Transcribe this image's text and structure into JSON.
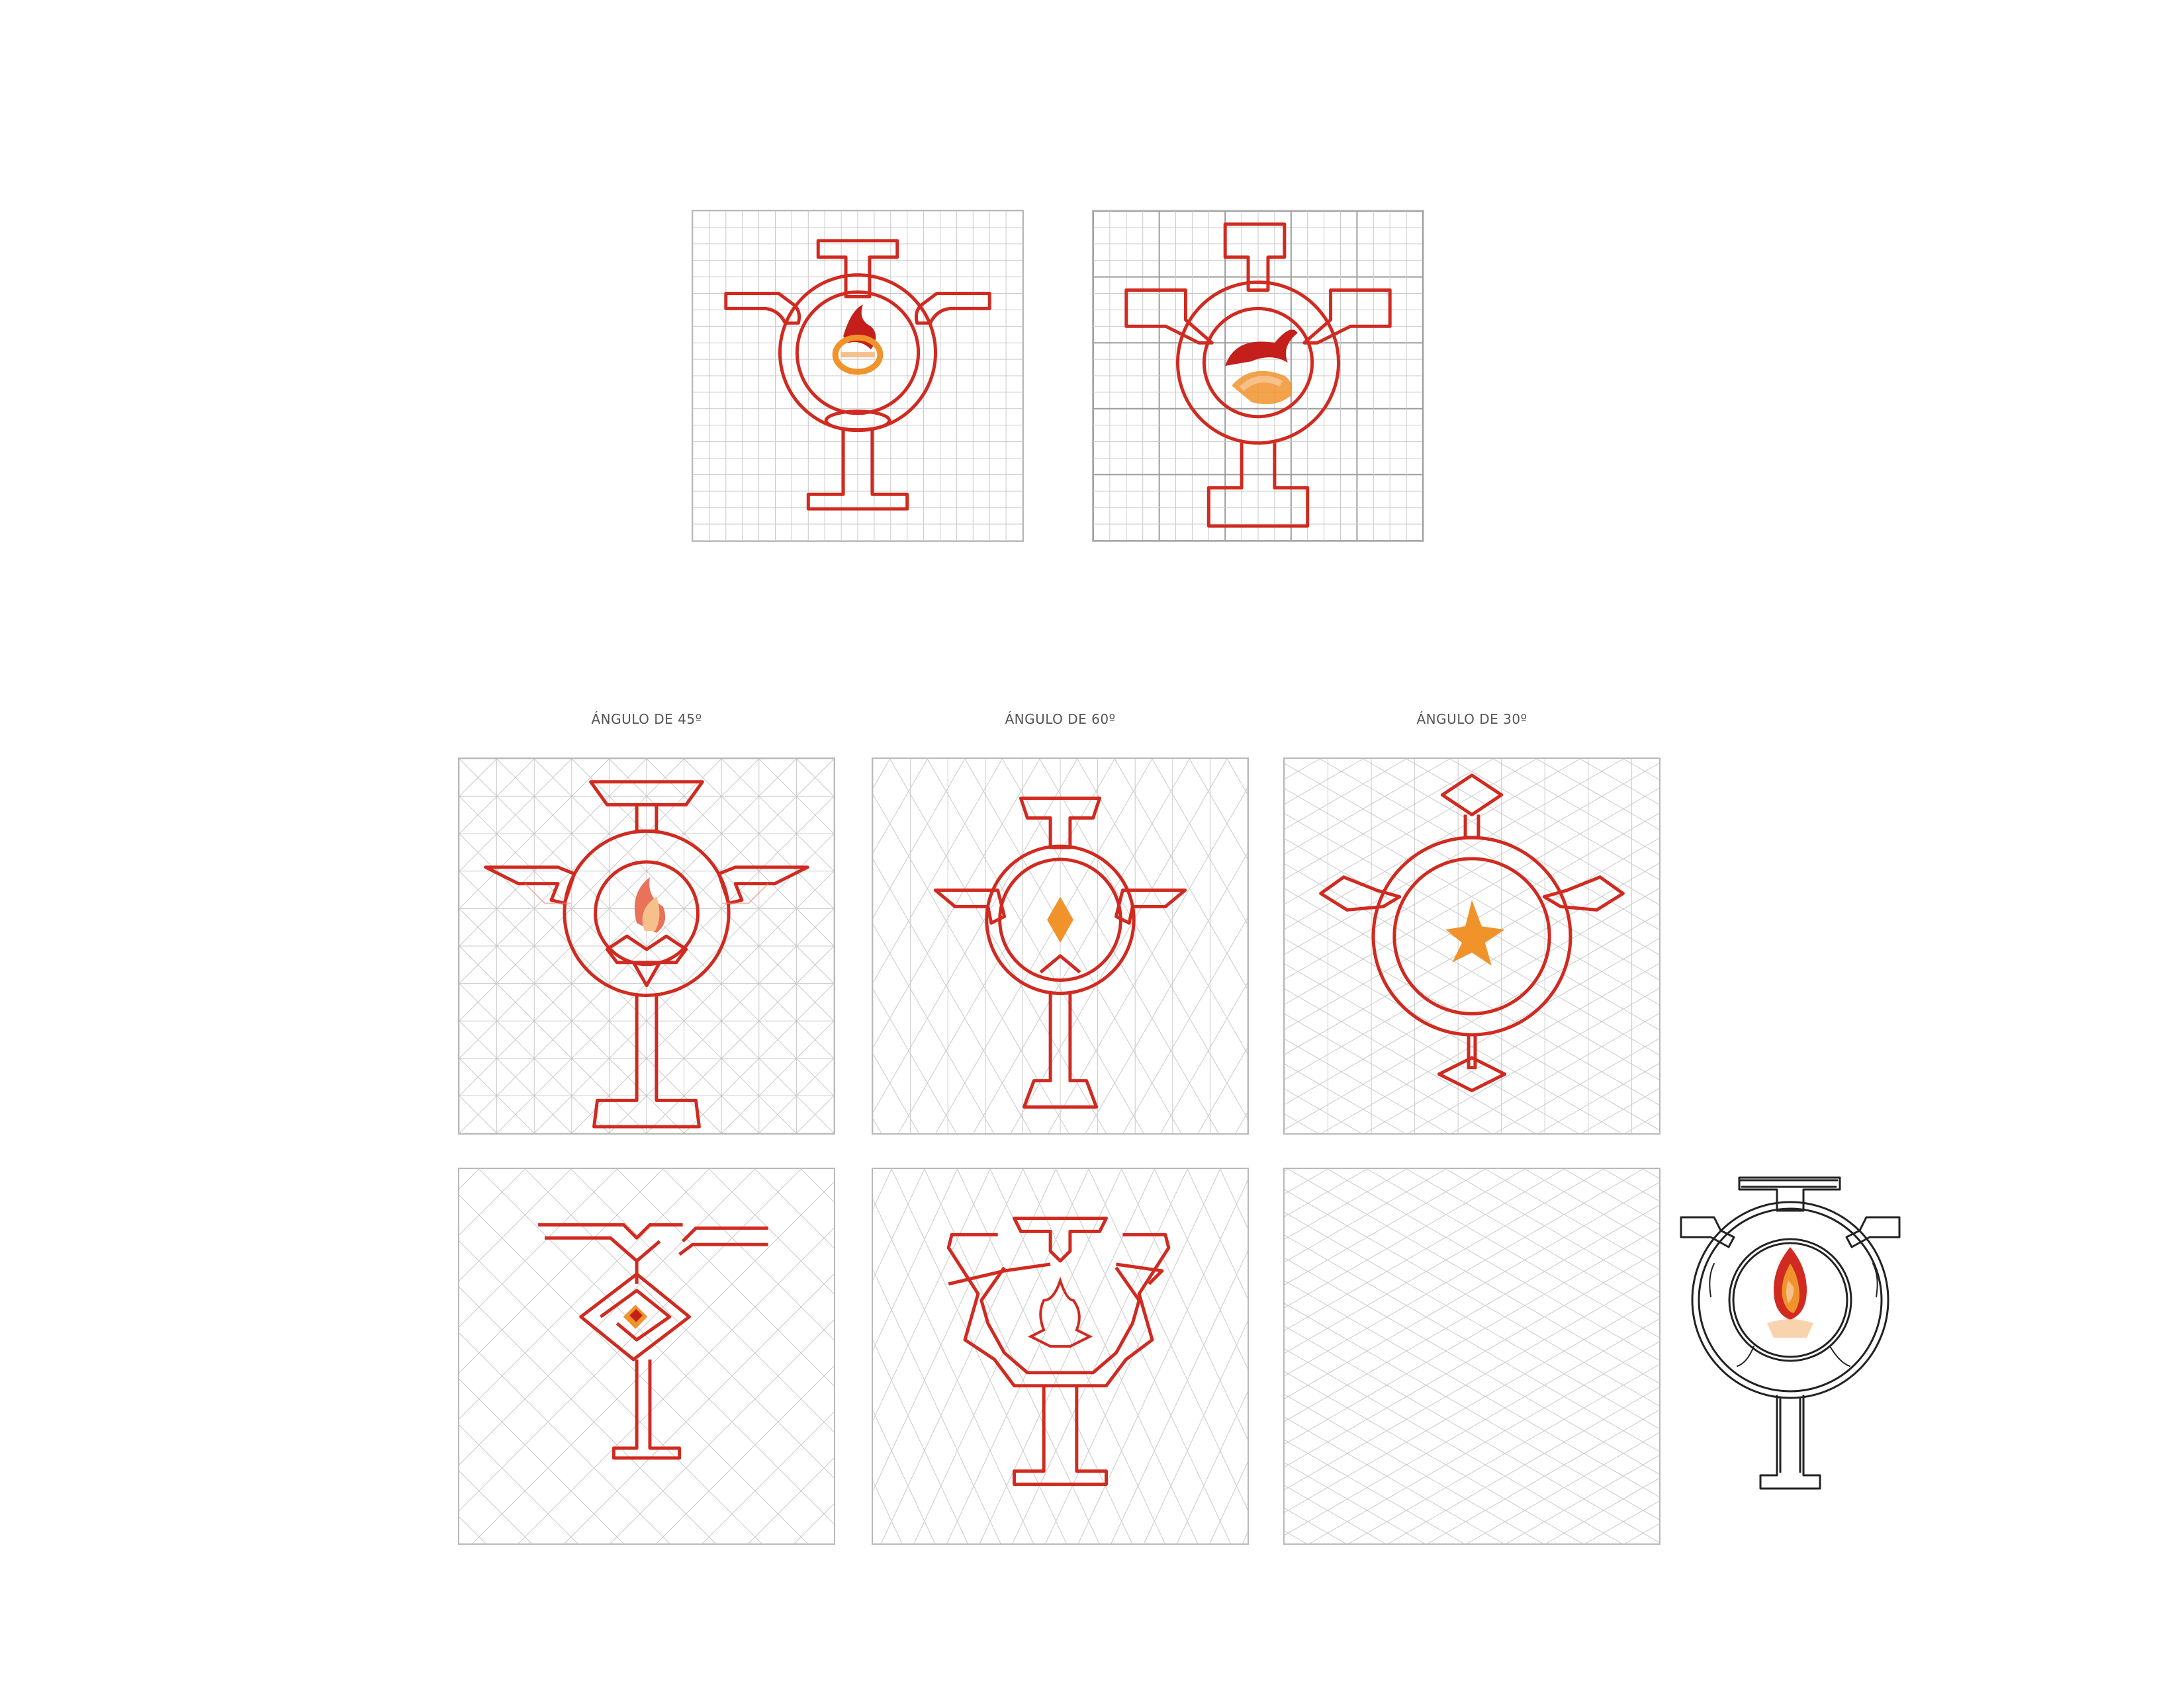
{
  "colors": {
    "grid": "#c9c9c9",
    "grid_major": "#9c9c9c",
    "outline": "#d12a20",
    "flame_dark": "#c41f1a",
    "flame_orange": "#f0932b",
    "flame_light": "#f6c08a",
    "sketch_ink": "#222222"
  },
  "sections": {
    "square_grids": [
      {
        "id": "square-fine",
        "icon": "emblem-flame-icon"
      },
      {
        "id": "square-major",
        "icon": "emblem-flame-icon"
      }
    ],
    "angle_grids": [
      {
        "id": "angle-45",
        "label": "ÁNGULO DE 45º",
        "icon": "winged-emblem-icon"
      },
      {
        "id": "angle-60",
        "label": "ÁNGULO DE 60º",
        "icon": "diamond-emblem-icon"
      },
      {
        "id": "angle-30",
        "label": "ÁNGULO DE 30º",
        "icon": "star-emblem-icon"
      }
    ],
    "second_row": [
      {
        "id": "diag-45",
        "icon": "square-spiral-emblem-icon"
      },
      {
        "id": "diag-60",
        "icon": "flame-hex-emblem-icon"
      },
      {
        "id": "diag-30",
        "icon": "empty-grid"
      }
    ],
    "sketch": {
      "icon": "hand-sketch-emblem-icon"
    }
  }
}
